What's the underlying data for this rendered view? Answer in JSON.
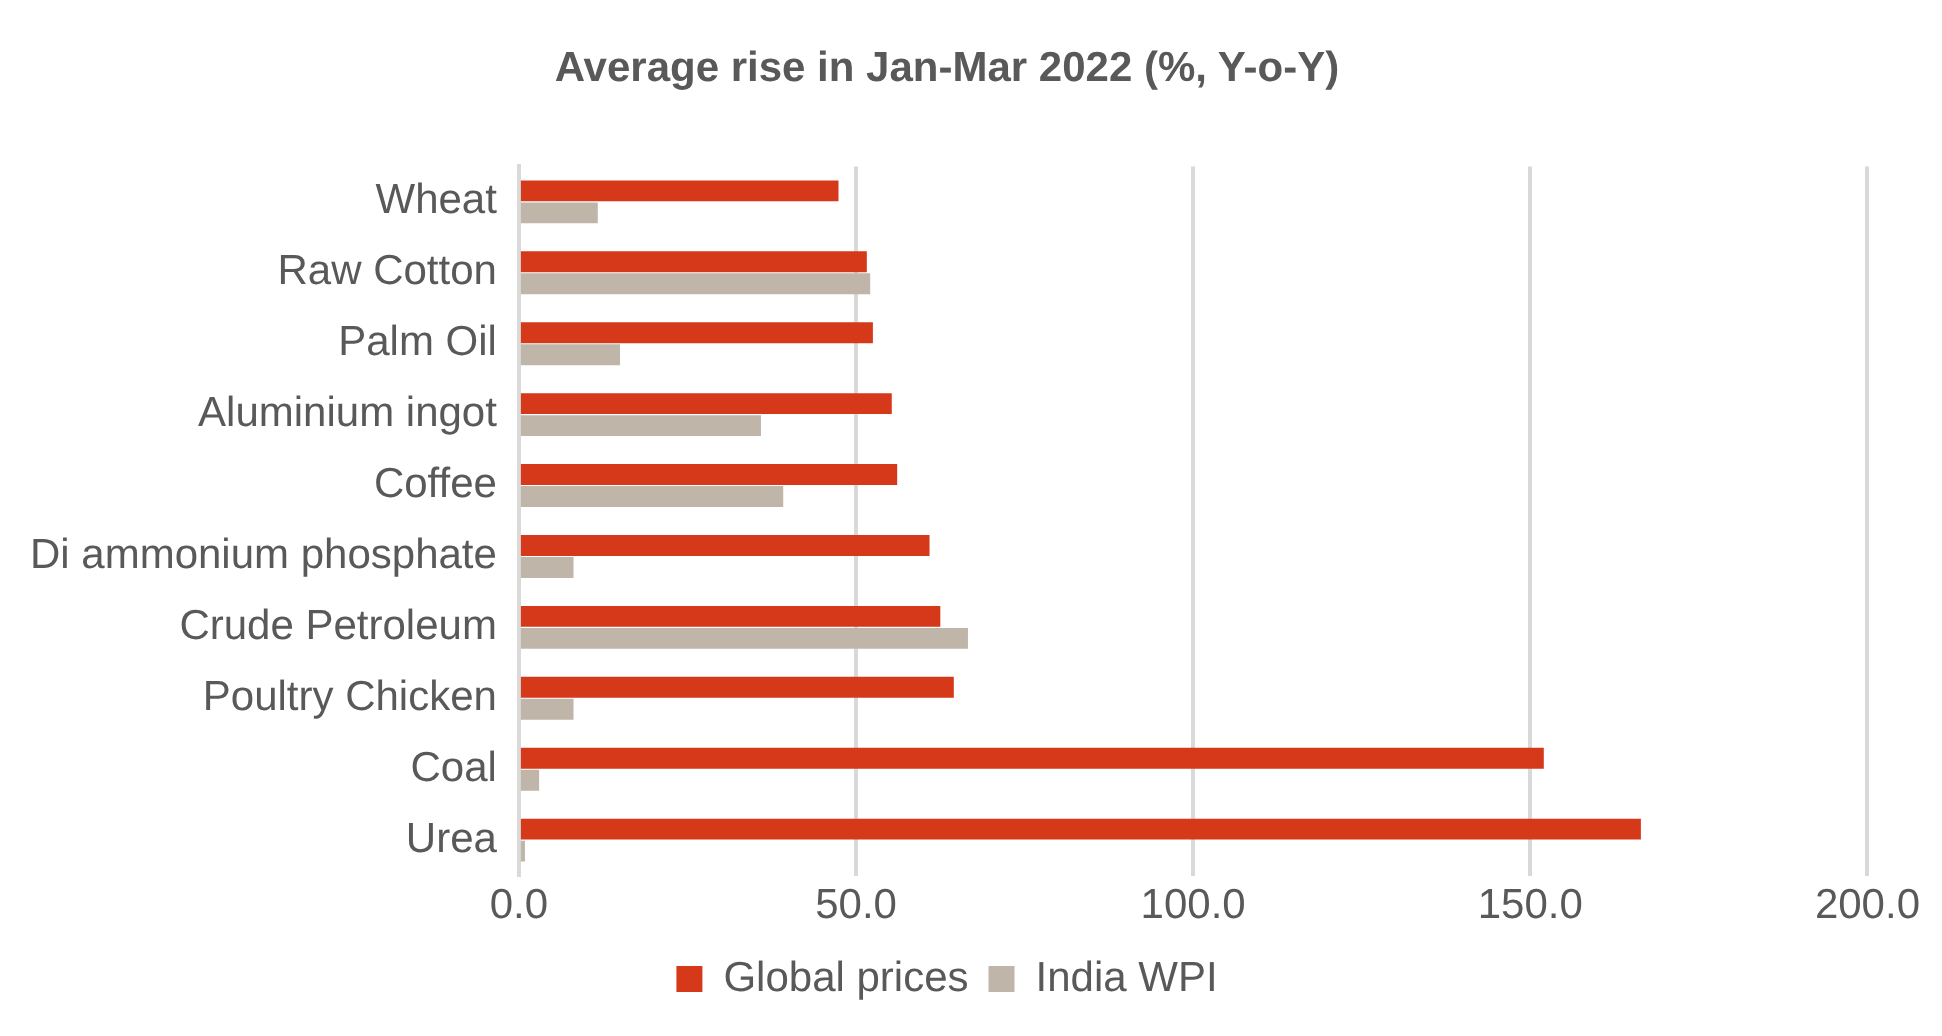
{
  "chart_data": {
    "type": "bar",
    "orientation": "horizontal",
    "title": "Average rise in Jan-Mar 2022 (%, Y-o-Y)",
    "categories": [
      "Wheat",
      "Raw Cotton",
      "Palm Oil",
      "Aluminium ingot",
      "Coffee",
      "Di ammonium phosphate",
      "Crude Petroleum",
      "Poultry Chicken",
      "Coal",
      "Urea"
    ],
    "series": [
      {
        "name": "Global prices",
        "color": "#d5391a",
        "values": [
          47.4,
          51.6,
          52.5,
          55.3,
          56.1,
          60.9,
          62.5,
          64.5,
          152.0,
          166.4
        ]
      },
      {
        "name": "India WPI",
        "color": "#bfb6a9",
        "values": [
          11.7,
          52.1,
          15.0,
          35.9,
          39.2,
          8.1,
          66.6,
          8.1,
          3.0,
          0.9
        ]
      }
    ],
    "xlim": [
      0,
      200
    ],
    "xticks": [
      {
        "value": 0,
        "label": "0.0"
      },
      {
        "value": 50,
        "label": "50.0"
      },
      {
        "value": 100,
        "label": "100.0"
      },
      {
        "value": 150,
        "label": "150.0"
      },
      {
        "value": 200,
        "label": "200.0"
      }
    ],
    "grid": "x",
    "legend": "bottom"
  }
}
